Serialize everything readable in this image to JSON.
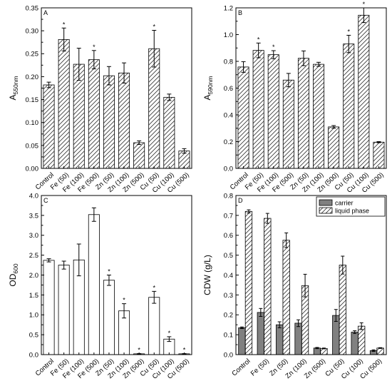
{
  "chart_data": [
    {
      "panel": "A",
      "type": "bar",
      "pattern": "hatched",
      "ylabel_main": "A",
      "ylabel_sub": "550nm",
      "ylim": [
        0,
        0.35
      ],
      "yticks": [
        "0.00",
        "0.05",
        "0.10",
        "0.15",
        "0.20",
        "0.25",
        "0.30",
        "0.35"
      ],
      "categories": [
        "Control",
        "Fe (50)",
        "Fe (100)",
        "Fe (500)",
        "Zn (50)",
        "Zn (100)",
        "Zn (500)",
        "Cu (50)",
        "Cu (100)",
        "Cu (500)"
      ],
      "values": [
        0.182,
        0.281,
        0.227,
        0.237,
        0.202,
        0.208,
        0.056,
        0.261,
        0.155,
        0.038
      ],
      "errors": [
        0.006,
        0.025,
        0.035,
        0.02,
        0.02,
        0.022,
        0.004,
        0.04,
        0.007,
        0.005
      ],
      "significant": [
        false,
        true,
        false,
        true,
        false,
        false,
        false,
        true,
        false,
        false
      ],
      "star_symbol": "*"
    },
    {
      "panel": "B",
      "type": "bar",
      "pattern": "hatched",
      "ylabel_main": "A",
      "ylabel_sub": "590nm",
      "ylim": [
        0,
        1.2
      ],
      "yticks": [
        "0.0",
        "0.2",
        "0.4",
        "0.6",
        "0.8",
        "1.0",
        "1.2"
      ],
      "categories": [
        "Control",
        "Fe (50)",
        "Fe (100)",
        "Fe (500)",
        "Zn (50)",
        "Zn (100)",
        "Zn (500)",
        "Cu (50)",
        "Cu (100)",
        "Cu (500)"
      ],
      "values": [
        0.758,
        0.882,
        0.85,
        0.66,
        0.823,
        0.778,
        0.31,
        0.93,
        1.145,
        0.196
      ],
      "errors": [
        0.04,
        0.055,
        0.03,
        0.05,
        0.055,
        0.015,
        0.01,
        0.065,
        0.055,
        0.004
      ],
      "significant": [
        false,
        true,
        true,
        false,
        false,
        false,
        false,
        true,
        true,
        false
      ],
      "star_symbol": "*"
    },
    {
      "panel": "C",
      "type": "bar",
      "pattern": "open",
      "ylabel_main": "OD",
      "ylabel_sub": "600",
      "ylim": [
        0,
        4.0
      ],
      "yticks": [
        "0.0",
        "0.5",
        "1.0",
        "1.5",
        "2.0",
        "2.5",
        "3.0",
        "3.5",
        "4.0"
      ],
      "categories": [
        "Control",
        "Fe (50)",
        "Fe (100)",
        "Fe (500)",
        "Zn (50)",
        "Zn (100)",
        "Zn (500)",
        "Cu (50)",
        "Cu (100)",
        "Cu (500)"
      ],
      "values": [
        2.37,
        2.25,
        2.38,
        3.52,
        1.87,
        1.1,
        0.02,
        1.44,
        0.39,
        0.02
      ],
      "errors": [
        0.04,
        0.1,
        0.4,
        0.17,
        0.13,
        0.18,
        0.005,
        0.15,
        0.06,
        0.005
      ],
      "significant": [
        false,
        false,
        false,
        false,
        true,
        true,
        true,
        true,
        true,
        true
      ],
      "star_symbol": "*"
    },
    {
      "panel": "D",
      "type": "bar",
      "pattern": "grouped",
      "ylabel_main": "CDW (g/L)",
      "ylim": [
        0,
        0.8
      ],
      "yticks": [
        "0.0",
        "0.1",
        "0.2",
        "0.3",
        "0.4",
        "0.5",
        "0.6",
        "0.7",
        "0.8"
      ],
      "categories": [
        "Control",
        "Fe (50)",
        "Zn (50)",
        "Zn (100)",
        "Zn (500)",
        "Cu (50)",
        "Cu (100)",
        "Cu (500)"
      ],
      "legend_position": "top-right",
      "series": [
        {
          "name": "carrier",
          "values": [
            0.135,
            0.212,
            0.15,
            0.158,
            0.033,
            0.197,
            0.113,
            0.02
          ],
          "errors": [
            0.004,
            0.02,
            0.015,
            0.017,
            0.003,
            0.03,
            0.007,
            0.004
          ],
          "color": "#808080"
        },
        {
          "name": "liquid phase",
          "values": [
            0.72,
            0.685,
            0.575,
            0.347,
            0.031,
            0.45,
            0.143,
            0.033
          ],
          "errors": [
            0.008,
            0.025,
            0.037,
            0.057,
            0.002,
            0.045,
            0.017,
            0.002
          ],
          "color": "#ffffff"
        }
      ]
    }
  ]
}
